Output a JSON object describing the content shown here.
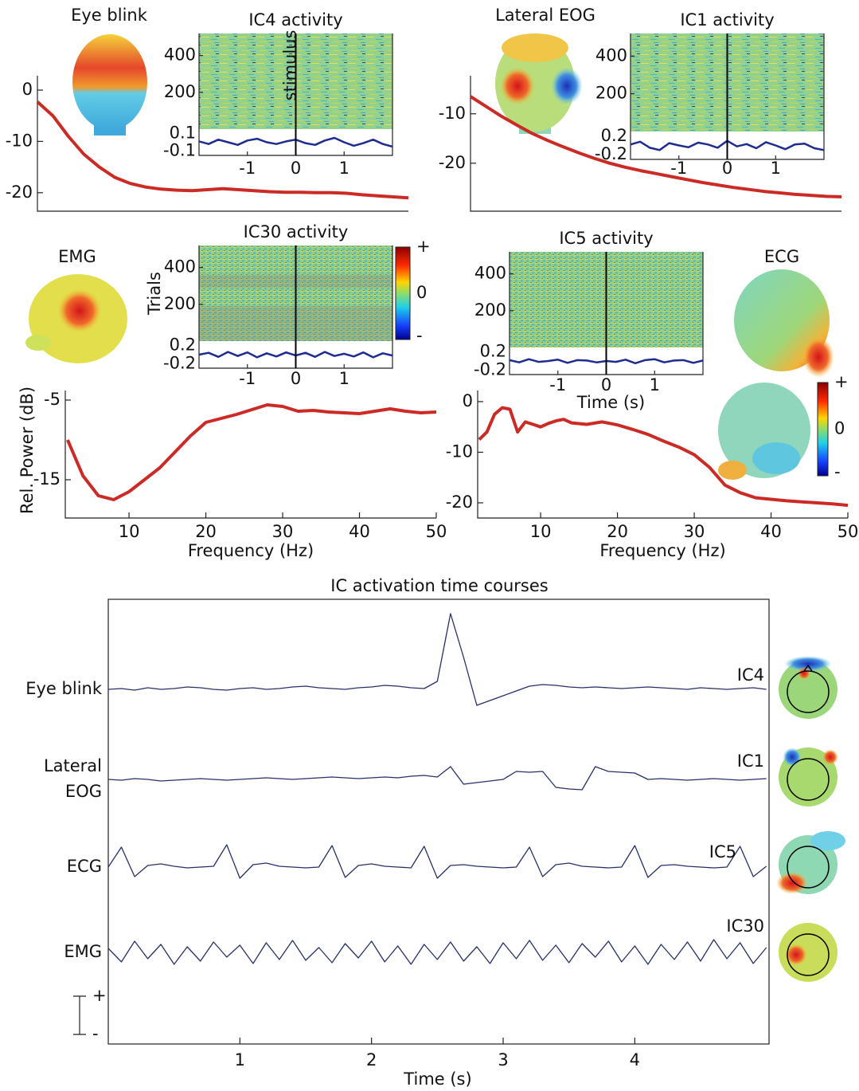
{
  "chart_data": [
    {
      "type": "line",
      "title": "Eye blink",
      "color": "#cc2a24",
      "x": [
        2,
        4,
        6,
        8,
        10,
        12,
        14,
        16,
        18,
        20,
        22,
        24,
        26,
        28,
        30,
        32,
        34,
        36,
        38,
        40,
        42,
        44,
        46,
        48,
        50
      ],
      "values": [
        -2.3,
        -5,
        -9,
        -12.5,
        -15,
        -17,
        -18.2,
        -18.9,
        -19.3,
        -19.5,
        -19.6,
        -19.4,
        -19.2,
        -19.4,
        -19.6,
        -19.8,
        -19.9,
        -19.9,
        -20.0,
        -20.0,
        -20.1,
        -20.4,
        -20.6,
        -20.8,
        -21.0
      ],
      "xlim": [
        2,
        50
      ],
      "ylim": [
        -23.6,
        2.8
      ],
      "yticks": [
        0,
        -10,
        -20
      ],
      "inset": {
        "title": "IC4 activity",
        "annotation": "stimulus",
        "color": "#1f2b8f",
        "trials_ylim": [
          0,
          520
        ],
        "trials_yticks": [
          200,
          400
        ],
        "x": [
          -2,
          -1.8,
          -1.6,
          -1.4,
          -1.2,
          -1,
          -0.8,
          -0.6,
          -0.4,
          -0.2,
          0,
          0.2,
          0.4,
          0.6,
          0.8,
          1,
          1.2,
          1.4,
          1.6,
          1.8,
          2
        ],
        "values": [
          0.01,
          -0.02,
          0.03,
          0.0,
          -0.03,
          0.02,
          0.04,
          0.0,
          -0.02,
          0.01,
          0.03,
          -0.01,
          -0.03,
          0.02,
          0.05,
          0.0,
          -0.04,
          -0.01,
          0.03,
          -0.02,
          -0.05
        ],
        "erp_ylim": [
          -0.15,
          0.15
        ],
        "erp_yticks": [
          0.1,
          -0.1
        ],
        "xlim": [
          -2,
          2
        ],
        "xticks": [
          -1,
          0,
          1
        ]
      }
    },
    {
      "type": "line",
      "title": "Lateral EOG",
      "color": "#cc2a24",
      "x": [
        2,
        4,
        6,
        8,
        10,
        12,
        14,
        16,
        18,
        20,
        22,
        24,
        26,
        28,
        30,
        32,
        34,
        36,
        38,
        40,
        42,
        44,
        46,
        48,
        50
      ],
      "values": [
        -6.5,
        -8.5,
        -10.5,
        -12.3,
        -14,
        -15.4,
        -16.7,
        -17.9,
        -19,
        -20,
        -20.8,
        -21.5,
        -22.1,
        -22.7,
        -23.3,
        -23.9,
        -24.4,
        -24.9,
        -25.3,
        -25.7,
        -26,
        -26.3,
        -26.5,
        -26.7,
        -26.8
      ],
      "xlim": [
        2,
        50
      ],
      "ylim": [
        -29.7,
        -2.3
      ],
      "yticks": [
        -10,
        -20
      ],
      "inset": {
        "title": "IC1 activity",
        "color": "#1f2b8f",
        "trials_ylim": [
          0,
          520
        ],
        "trials_yticks": [
          200,
          400
        ],
        "x": [
          -2,
          -1.8,
          -1.6,
          -1.4,
          -1.2,
          -1,
          -0.8,
          -0.6,
          -0.4,
          -0.2,
          0,
          0.2,
          0.4,
          0.6,
          0.8,
          1,
          1.2,
          1.4,
          1.6,
          1.8,
          2
        ],
        "values": [
          0.02,
          0.08,
          -0.05,
          -0.1,
          0.05,
          0.0,
          -0.04,
          0.06,
          0.02,
          -0.05,
          0.1,
          -0.02,
          0.03,
          -0.06,
          0.07,
          0.0,
          -0.08,
          0.02,
          0.04,
          -0.06,
          -0.1
        ],
        "erp_ylim": [
          -0.3,
          0.3
        ],
        "erp_yticks": [
          0.2,
          -0.2
        ],
        "xlim": [
          -2,
          2
        ],
        "xticks": [
          -1,
          0,
          1
        ]
      }
    },
    {
      "type": "line",
      "title": "EMG",
      "color": "#cc2a24",
      "x": [
        2,
        4,
        6,
        8,
        10,
        12,
        14,
        16,
        18,
        20,
        22,
        24,
        26,
        28,
        30,
        32,
        34,
        36,
        38,
        40,
        42,
        44,
        46,
        48,
        50
      ],
      "values": [
        -10,
        -14.5,
        -17,
        -17.5,
        -16.5,
        -15,
        -13.5,
        -11.5,
        -9.5,
        -7.8,
        -7.3,
        -6.8,
        -6.2,
        -5.6,
        -5.8,
        -6.4,
        -6.3,
        -6.5,
        -6.6,
        -6.7,
        -6.4,
        -6.1,
        -6.4,
        -6.6,
        -6.5
      ],
      "xlim": [
        1.7,
        50
      ],
      "ylim": [
        -19.8,
        -3.8
      ],
      "yticks": [
        -5,
        -15
      ],
      "xticks": [
        10,
        20,
        30,
        40,
        50
      ],
      "xlabel": "Frequency (Hz)",
      "ylabel": "Rel. Power (dB)",
      "inset": {
        "title": "IC30 activity",
        "ylabel": "Trials",
        "color": "#1f2b8f",
        "trials_ylim": [
          0,
          520
        ],
        "trials_yticks": [
          200,
          400
        ],
        "x": [
          -2,
          -1.8,
          -1.6,
          -1.4,
          -1.2,
          -1,
          -0.8,
          -0.6,
          -0.4,
          -0.2,
          0,
          0.2,
          0.4,
          0.6,
          0.8,
          1,
          1.2,
          1.4,
          1.6,
          1.8,
          2
        ],
        "values": [
          0.0,
          0.04,
          -0.05,
          0.06,
          -0.03,
          0.05,
          -0.06,
          0.03,
          -0.04,
          0.05,
          -0.02,
          0.04,
          -0.05,
          0.06,
          -0.03,
          0.02,
          -0.04,
          0.05,
          -0.06,
          0.03,
          -0.02
        ],
        "erp_ylim": [
          -0.3,
          0.3
        ],
        "erp_yticks": [
          0.2,
          -0.2
        ],
        "xlim": [
          -2,
          2
        ],
        "xticks": [
          -1,
          0,
          1
        ],
        "colorbar_labels": [
          "+",
          "0",
          "-"
        ]
      }
    },
    {
      "type": "line",
      "title": "ECG",
      "color": "#cc2a24",
      "x": [
        2,
        3,
        4,
        5,
        6,
        7,
        8,
        9,
        10,
        11,
        12,
        13,
        14,
        16,
        18,
        20,
        22,
        24,
        26,
        28,
        30,
        32,
        34,
        36,
        38,
        40,
        42,
        44,
        46,
        48,
        50
      ],
      "values": [
        -7.5,
        -6,
        -2.5,
        -1.2,
        -1.5,
        -6,
        -4,
        -4.5,
        -5,
        -4.3,
        -3.8,
        -3.5,
        -4.2,
        -4.5,
        -4,
        -4.6,
        -5.5,
        -6.5,
        -7.8,
        -9,
        -10.5,
        -13,
        -16.5,
        -18,
        -19,
        -19.3,
        -19.6,
        -19.8,
        -20,
        -20.2,
        -20.5
      ],
      "xlim": [
        1.8,
        50
      ],
      "ylim": [
        -23,
        2.2
      ],
      "yticks": [
        0,
        -10,
        -20
      ],
      "xticks": [
        10,
        20,
        30,
        40,
        50
      ],
      "xlabel": "Frequency (Hz)",
      "colorbar_labels": [
        "+",
        "0",
        "-"
      ],
      "inset": {
        "title": "IC5 activity",
        "xlabel": "Time (s)",
        "color": "#1f2b8f",
        "trials_ylim": [
          0,
          520
        ],
        "trials_yticks": [
          200,
          400
        ],
        "x": [
          -2,
          -1.8,
          -1.6,
          -1.4,
          -1.2,
          -1,
          -0.8,
          -0.6,
          -0.4,
          -0.2,
          0,
          0.2,
          0.4,
          0.6,
          0.8,
          1,
          1.2,
          1.4,
          1.6,
          1.8,
          2
        ],
        "values": [
          0.02,
          -0.03,
          0.04,
          -0.02,
          0.0,
          0.03,
          -0.04,
          0.02,
          0.01,
          -0.03,
          0.0,
          -0.02,
          0.03,
          -0.05,
          0.02,
          0.04,
          -0.03,
          0.01,
          0.02,
          -0.04,
          0.01
        ],
        "erp_ylim": [
          -0.3,
          0.3
        ],
        "erp_yticks": [
          0.2,
          -0.2
        ],
        "xlim": [
          -2,
          2
        ],
        "xticks": [
          -1,
          0,
          1
        ]
      }
    },
    {
      "type": "traces",
      "title": "IC activation time courses",
      "xlabel": "Time (s)",
      "xlim": [
        0,
        5.02
      ],
      "xticks": [
        1,
        2,
        3,
        4
      ],
      "scale_labels": [
        "+",
        "-"
      ],
      "x": [
        0,
        0.1,
        0.2,
        0.3,
        0.4,
        0.5,
        0.6,
        0.7,
        0.8,
        0.9,
        1,
        1.1,
        1.2,
        1.3,
        1.4,
        1.5,
        1.6,
        1.7,
        1.8,
        1.9,
        2,
        2.1,
        2.2,
        2.3,
        2.4,
        2.5,
        2.6,
        2.7,
        2.8,
        2.9,
        3,
        3.1,
        3.2,
        3.3,
        3.4,
        3.5,
        3.6,
        3.7,
        3.8,
        3.9,
        4,
        4.1,
        4.2,
        4.3,
        4.4,
        4.5,
        4.6,
        4.7,
        4.8,
        4.9,
        5
      ],
      "series": [
        {
          "label": [
            "Eye blink"
          ],
          "component": "IC4",
          "color": "#27306b",
          "values": [
            0,
            1,
            -1,
            2,
            0,
            1,
            3,
            2,
            0,
            -1,
            1,
            2,
            0,
            1,
            3,
            4,
            2,
            1,
            0,
            2,
            3,
            5,
            4,
            2,
            1,
            10,
            95,
            40,
            -20,
            -14,
            -8,
            -2,
            4,
            6,
            5,
            3,
            2,
            3,
            2,
            1,
            2,
            3,
            2,
            1,
            0,
            2,
            1,
            0,
            1,
            2,
            0
          ]
        },
        {
          "label": [
            "Lateral",
            "EOG"
          ],
          "component": "IC1",
          "color": "#27306b",
          "values": [
            0,
            -1,
            1,
            0,
            -2,
            -1,
            0,
            1,
            0,
            -1,
            0,
            1,
            2,
            1,
            0,
            1,
            2,
            3,
            2,
            1,
            2,
            3,
            2,
            4,
            5,
            3,
            16,
            -6,
            -4,
            -2,
            0,
            10,
            9,
            10,
            -10,
            -12,
            -13,
            16,
            10,
            9,
            8,
            0,
            1,
            0,
            -1,
            0,
            1,
            0,
            -1,
            0,
            1
          ]
        },
        {
          "label": [
            "ECG"
          ],
          "component": "IC5",
          "color": "#27306b",
          "values": [
            0,
            25,
            -12,
            2,
            4,
            1,
            -1,
            0,
            1,
            28,
            -14,
            3,
            5,
            1,
            0,
            -1,
            0,
            27,
            -13,
            2,
            4,
            1,
            0,
            -1,
            26,
            -14,
            2,
            3,
            1,
            0,
            -1,
            0,
            25,
            -12,
            3,
            5,
            1,
            0,
            -1,
            0,
            27,
            -13,
            2,
            3,
            1,
            0,
            -1,
            0,
            26,
            -12,
            1
          ]
        },
        {
          "label": [
            "EMG"
          ],
          "component": "IC30",
          "color": "#27306b",
          "values": [
            5,
            -12,
            14,
            -8,
            10,
            -15,
            7,
            -11,
            13,
            -6,
            9,
            -14,
            12,
            -9,
            15,
            -10,
            6,
            -13,
            11,
            -7,
            14,
            -12,
            8,
            -15,
            10,
            -9,
            13,
            -11,
            7,
            -14,
            12,
            -8,
            15,
            -10,
            9,
            -13,
            11,
            -6,
            14,
            -12,
            8,
            -15,
            10,
            -9,
            13,
            -11,
            16,
            -8,
            12,
            -14,
            6
          ]
        }
      ]
    }
  ]
}
